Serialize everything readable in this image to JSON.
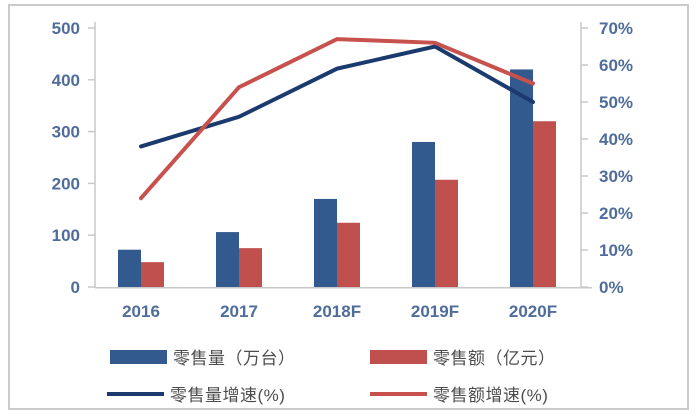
{
  "chart_data": {
    "type": "combo-bar-line",
    "categories": [
      "2016",
      "2017",
      "2018F",
      "2019F",
      "2020F"
    ],
    "series": [
      {
        "name": "零售量（万台）",
        "type": "bar",
        "axis": "left",
        "color": "#335a8e",
        "values": [
          72,
          106,
          170,
          280,
          420
        ]
      },
      {
        "name": "零售额（亿元）",
        "type": "bar",
        "axis": "left",
        "color": "#c0504d",
        "values": [
          48,
          75,
          124,
          207,
          320
        ]
      },
      {
        "name": "零售量增速(%)",
        "type": "line",
        "axis": "right",
        "color": "#1b3a6e",
        "values": [
          38,
          46,
          59,
          65,
          50
        ]
      },
      {
        "name": "零售额增速(%)",
        "type": "line",
        "axis": "right",
        "color": "#c6514d",
        "values": [
          24,
          54,
          67,
          66,
          55
        ]
      }
    ],
    "left_axis": {
      "min": 0,
      "max": 500,
      "step": 100,
      "tick_labels": [
        "0",
        "100",
        "200",
        "300",
        "400",
        "500"
      ]
    },
    "right_axis": {
      "min": 0,
      "max": 70,
      "step": 10,
      "tick_labels": [
        "0%",
        "10%",
        "20%",
        "30%",
        "40%",
        "50%",
        "60%",
        "70%"
      ]
    },
    "grid": false,
    "title": "",
    "legend_position": "bottom"
  },
  "colors": {
    "axis_text": "#4f6d9a",
    "legend_text": "#4d4d4d",
    "axis_line": "#c9c9c9",
    "frame_border": "#cbcbcb",
    "background": "#ffffff"
  }
}
